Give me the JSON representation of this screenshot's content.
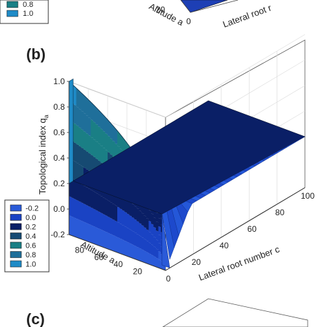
{
  "panels": [
    {
      "label": "",
      "partial": true
    },
    {
      "label": "(b)"
    },
    {
      "label": "(c)",
      "partial": true
    }
  ],
  "top_strip": {
    "legend": [
      "0.8",
      "1.0"
    ],
    "altitude_label": "Altitude a",
    "altitude_tick": "20",
    "lateral_tick": "0",
    "lateral_label": "Lateral root r"
  },
  "chart_data": {
    "type": "surface3d",
    "title": "",
    "zlabel": "Topological index q",
    "zlabel_sub": "a",
    "xlabel": "Lateral root number c",
    "ylabel": "Altitude a",
    "zlim": [
      -0.2,
      1.0
    ],
    "xlim": [
      0,
      100
    ],
    "ylim": [
      0,
      100
    ],
    "z_ticks": [
      "1.0",
      "0.8",
      "0.6",
      "0.4",
      "0.2",
      "0.0",
      "-0.2"
    ],
    "x_ticks": [
      "0",
      "20",
      "40",
      "60",
      "80",
      "100"
    ],
    "y_ticks": [
      "80",
      "60",
      "40",
      "20"
    ],
    "legend": [
      "-0.2",
      "0.0",
      "0.2",
      "0.4",
      "0.6",
      "0.8",
      "1.0"
    ],
    "colors": {
      "-0.2": "#2a5ad8",
      "0.0": "#1a43c4",
      "0.2": "#0a1f66",
      "0.4": "#164a72",
      "0.6": "#1a7f85",
      "0.8": "#1f6f9a",
      "1.0": "#1f8bc7"
    },
    "surface": {
      "description_points": [
        {
          "c": 0,
          "a": 100,
          "q": 1.0
        },
        {
          "c": 0,
          "a": 0,
          "q": -0.2
        },
        {
          "c": 5,
          "a": 100,
          "q": 0.2
        },
        {
          "c": 100,
          "a": 100,
          "q": 0.2
        },
        {
          "c": 100,
          "a": 0,
          "q": 0.2
        }
      ]
    }
  }
}
